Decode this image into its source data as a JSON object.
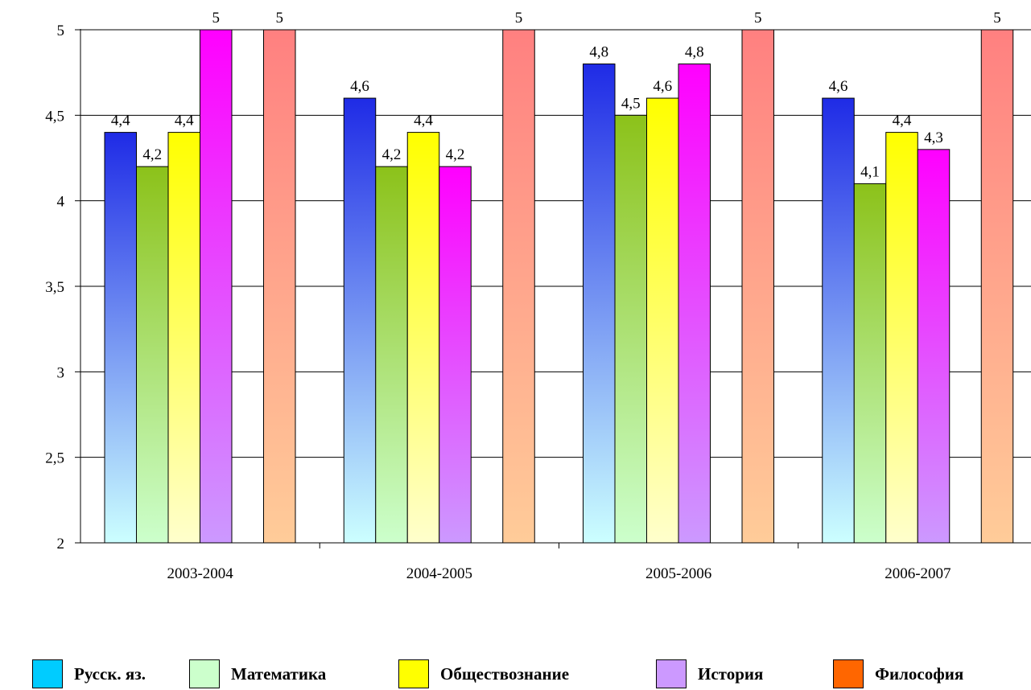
{
  "chart_data": {
    "type": "bar",
    "categories": [
      "2003-2004",
      "2004-2005",
      "2005-2006",
      "2006-2007"
    ],
    "series": [
      {
        "name": "Русск. яз.",
        "values": [
          4.4,
          4.6,
          4.8,
          4.6
        ],
        "labels": [
          "4,4",
          "4,6",
          "4,8",
          "4,6"
        ],
        "color": "#00CCFF",
        "gradient": [
          "#1F2BE6",
          "#CCFFFF"
        ]
      },
      {
        "name": "Математика",
        "values": [
          4.2,
          4.2,
          4.5,
          4.1
        ],
        "labels": [
          "4,2",
          "4,2",
          "4,5",
          "4,1"
        ],
        "color": "#CCFFCC",
        "gradient": [
          "#8CC21A",
          "#CCFFCC"
        ]
      },
      {
        "name": "Обществознание",
        "values": [
          4.4,
          4.4,
          4.6,
          4.4
        ],
        "labels": [
          "4,4",
          "4,4",
          "4,6",
          "4,4"
        ],
        "color": "#FFFF00",
        "gradient": [
          "#FFFF00",
          "#FFFFCC"
        ]
      },
      {
        "name": "История",
        "values": [
          5,
          4.2,
          4.8,
          4.3
        ],
        "labels": [
          "5",
          "4,2",
          "4,8",
          "4,3"
        ],
        "color": "#CC99FF",
        "gradient": [
          "#FF00FF",
          "#CC99FF"
        ]
      },
      {
        "name": "Философия",
        "values": [
          5,
          5,
          5,
          5
        ],
        "labels": [
          "5",
          "5",
          "5",
          "5"
        ],
        "color": "#FF6600",
        "gradient": [
          "#FF8080",
          "#FFCC99"
        ]
      }
    ],
    "ylim": [
      2,
      5
    ],
    "yticks": [
      "2",
      "2,5",
      "3",
      "3,5",
      "4",
      "4,5",
      "5"
    ],
    "ytick_values": [
      2,
      2.5,
      3,
      3.5,
      4,
      4.5,
      5
    ],
    "grid": true,
    "legend_position": "bottom",
    "title": "",
    "xlabel": "",
    "ylabel": ""
  }
}
